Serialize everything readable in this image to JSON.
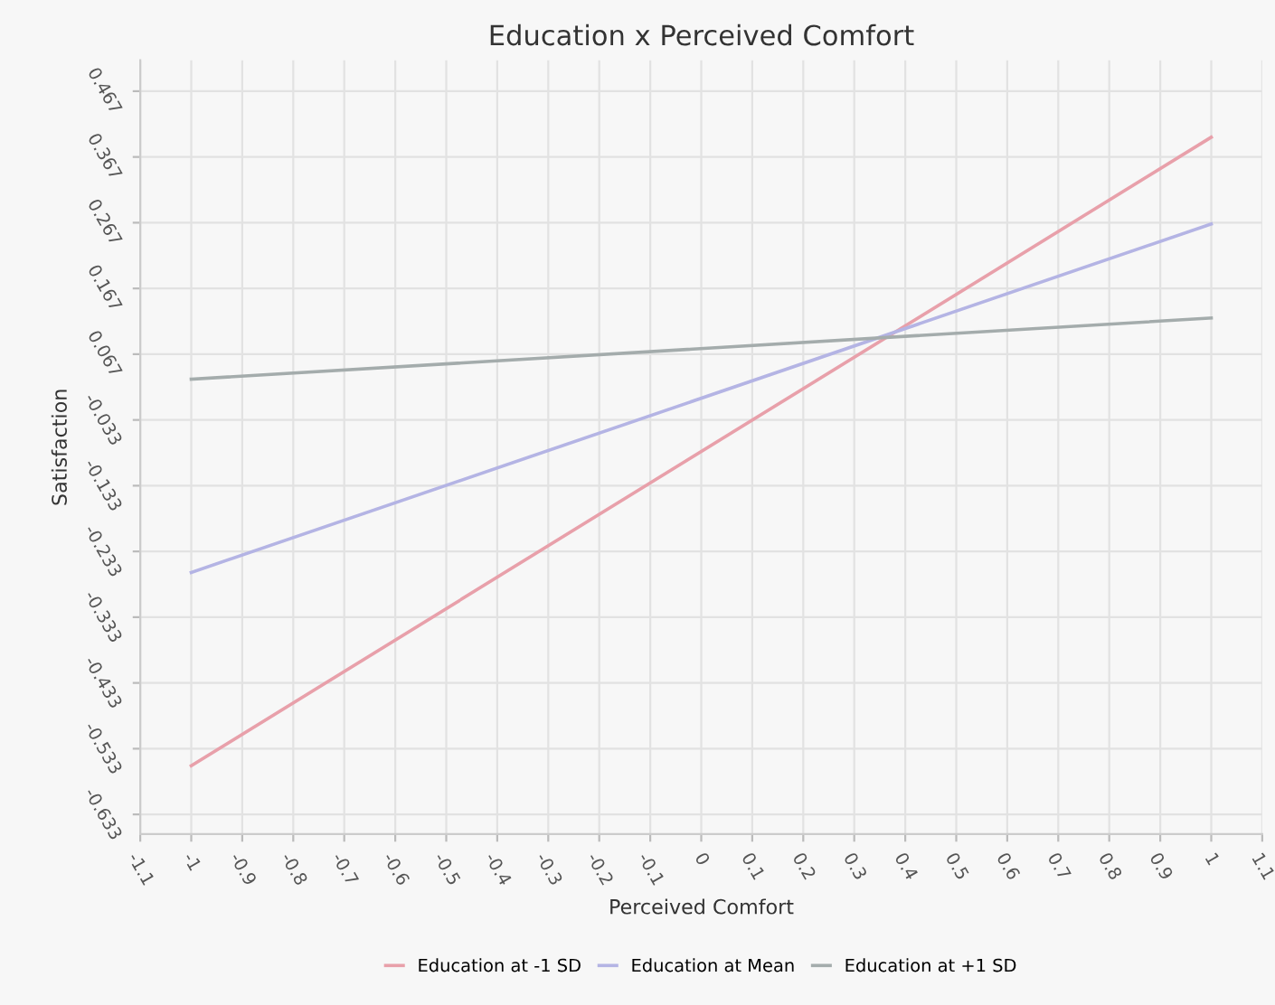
{
  "chart_data": {
    "type": "line",
    "title": "Education x Perceived Comfort",
    "xlabel": "Perceived Comfort",
    "ylabel": "Satisfaction",
    "x": [
      -1,
      1
    ],
    "series": [
      {
        "name": "Education at -1 SD",
        "color": "#e8a0aa",
        "values": [
          -0.559,
          0.397
        ]
      },
      {
        "name": "Education at Mean",
        "color": "#b4b4e4",
        "values": [
          -0.265,
          0.265
        ]
      },
      {
        "name": "Education at +1 SD",
        "color": "#a4acac",
        "values": [
          0.029,
          0.122
        ]
      }
    ],
    "xlim": [
      -1.1,
      1.1
    ],
    "xticks": [
      -1.1,
      -1,
      -0.9,
      -0.8,
      -0.7,
      -0.6,
      -0.5,
      -0.4,
      -0.3,
      -0.2,
      -0.1,
      0,
      0.1,
      0.2,
      0.3,
      0.4,
      0.5,
      0.6,
      0.7,
      0.8,
      0.9,
      1,
      1.1
    ],
    "ylim": [
      -0.663,
      0.514
    ],
    "yticks": [
      -0.633,
      -0.533,
      -0.433,
      -0.333,
      -0.233,
      -0.133,
      -0.033,
      0.067,
      0.167,
      0.267,
      0.367,
      0.467
    ],
    "grid": true,
    "legend": "bottom",
    "marker": "none",
    "line_style": "solid"
  }
}
